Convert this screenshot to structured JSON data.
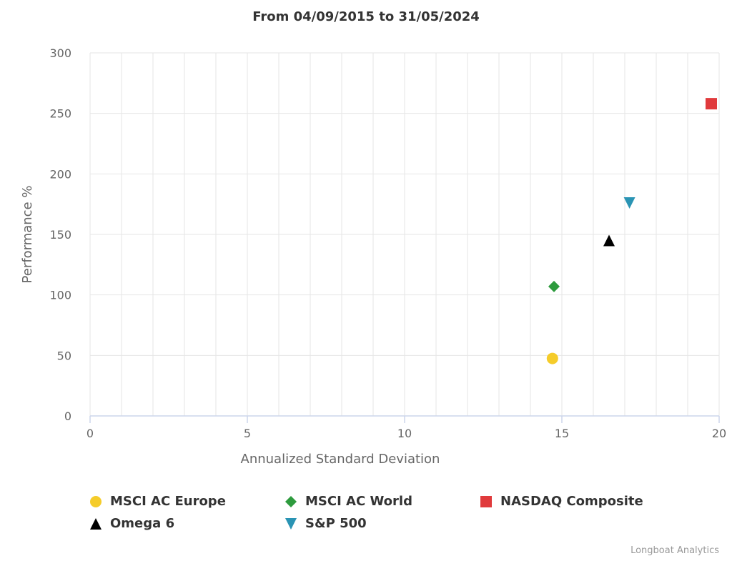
{
  "chart_data": {
    "type": "scatter",
    "title": "From 04/09/2015 to 31/05/2024",
    "xlabel": "Annualized Standard Deviation",
    "ylabel": "Performance %",
    "xlim": [
      0,
      20
    ],
    "ylim": [
      0,
      300
    ],
    "xticks": [
      "0",
      "5",
      "10",
      "15",
      "20"
    ],
    "yticks": [
      "0",
      "50",
      "100",
      "150",
      "200",
      "250",
      "300"
    ],
    "grid": true,
    "legend_position": "bottom",
    "series": [
      {
        "name": "MSCI AC Europe",
        "marker": "circle",
        "color": "#f5cc2a",
        "x": 14.7,
        "y": 47.5
      },
      {
        "name": "MSCI AC World",
        "marker": "diamond",
        "color": "#2e9b3e",
        "x": 14.75,
        "y": 107
      },
      {
        "name": "NASDAQ Composite",
        "marker": "square",
        "color": "#e03a3c",
        "x": 19.75,
        "y": 258
      },
      {
        "name": "Omega 6",
        "marker": "triangle",
        "color": "#000000",
        "x": 16.5,
        "y": 145
      },
      {
        "name": "S&P 500",
        "marker": "triangle-down",
        "color": "#2a94b4",
        "x": 17.15,
        "y": 176
      }
    ]
  },
  "credit": "Longboat Analytics"
}
